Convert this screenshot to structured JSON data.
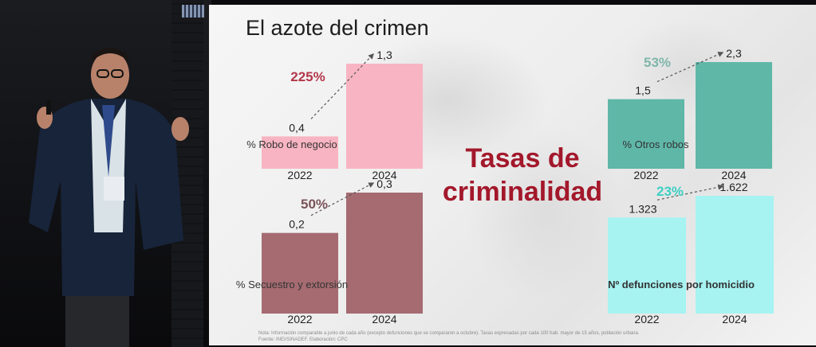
{
  "slide": {
    "title": "El azote del crimen",
    "center_title_line1": "Tasas de",
    "center_title_line2": "criminalidad",
    "note_line1": "Nota: Información comparable a junio de cada año (excepto defunciones que se compararon a octubre). Tasas expresadas por cada 100 hab. mayor de 15 años, población urbana.",
    "note_line2": "Fuente: INEI/SINADEF. Elaboración: CPC"
  },
  "colors": {
    "robo_negocio": "#f8b4c2",
    "secuestro": "#a56b71",
    "otros_robos": "#5fb7a8",
    "homicidio": "#a6f3f2",
    "pct_red": "#b3364a",
    "pct_dark": "#7a5358",
    "pct_teal": "#7fb6aa",
    "pct_cyan": "#3dd0c4"
  },
  "chart_data": [
    {
      "type": "bar",
      "title": "% Robo de negocio",
      "categories": [
        "2022",
        "2024"
      ],
      "values": [
        0.4,
        1.3
      ],
      "value_labels": [
        "0,4",
        "1,3"
      ],
      "change_label": "225%",
      "ylim": [
        0,
        1.3
      ]
    },
    {
      "type": "bar",
      "title": "% Secuestro y extorsión",
      "categories": [
        "2022",
        "2024"
      ],
      "values": [
        0.2,
        0.3
      ],
      "value_labels": [
        "0,2",
        "0,3"
      ],
      "change_label": "50%",
      "ylim": [
        0,
        0.3
      ]
    },
    {
      "type": "bar",
      "title": "% Otros robos",
      "categories": [
        "2022",
        "2024"
      ],
      "values": [
        1.5,
        2.3
      ],
      "value_labels": [
        "1,5",
        "2,3"
      ],
      "change_label": "53%",
      "ylim": [
        0,
        2.3
      ]
    },
    {
      "type": "bar",
      "title": "Nº defunciones por homicidio",
      "categories": [
        "2022",
        "2024"
      ],
      "values": [
        1323,
        1622
      ],
      "value_labels": [
        "1.323",
        "1.622"
      ],
      "change_label": "23%",
      "ylim": [
        0,
        1622
      ]
    }
  ]
}
